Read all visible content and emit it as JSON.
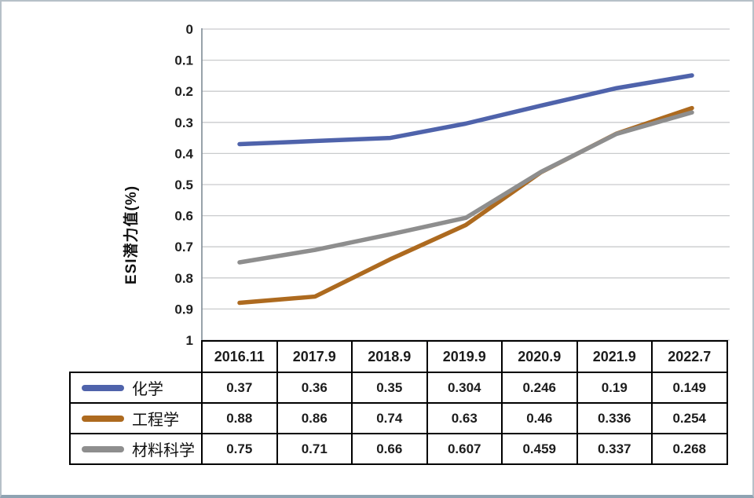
{
  "chart_data": {
    "type": "line",
    "title": "",
    "ylabel": "ESI潜力值(%)",
    "xlabel": "",
    "categories": [
      "2016.11",
      "2017.9",
      "2018.9",
      "2019.9",
      "2020.9",
      "2021.9",
      "2022.7"
    ],
    "series": [
      {
        "name": "化学",
        "color": "#4f63ab",
        "values": [
          0.37,
          0.36,
          0.35,
          0.304,
          0.246,
          0.19,
          0.149
        ]
      },
      {
        "name": "工程学",
        "color": "#ad6a1f",
        "values": [
          0.88,
          0.86,
          0.74,
          0.63,
          0.46,
          0.336,
          0.254
        ]
      },
      {
        "name": "材料科学",
        "color": "#8e8e8e",
        "values": [
          0.75,
          0.71,
          0.66,
          0.607,
          0.459,
          0.337,
          0.268
        ]
      }
    ],
    "y_axis": {
      "min": 0,
      "max": 1,
      "step": 0.1,
      "reversed": true,
      "tick_labels": [
        "0",
        "0.1",
        "0.2",
        "0.3",
        "0.4",
        "0.5",
        "0.6",
        "0.7",
        "0.8",
        "0.9",
        "1"
      ]
    },
    "grid": true,
    "legend_position": "data-table-left",
    "colors": {
      "gridline": "#c9cbcd",
      "axis_line": "#7f8b95",
      "table_border": "#000000",
      "tick_text": "#1f1f1f",
      "frame_border": "#b6c0c8"
    }
  }
}
